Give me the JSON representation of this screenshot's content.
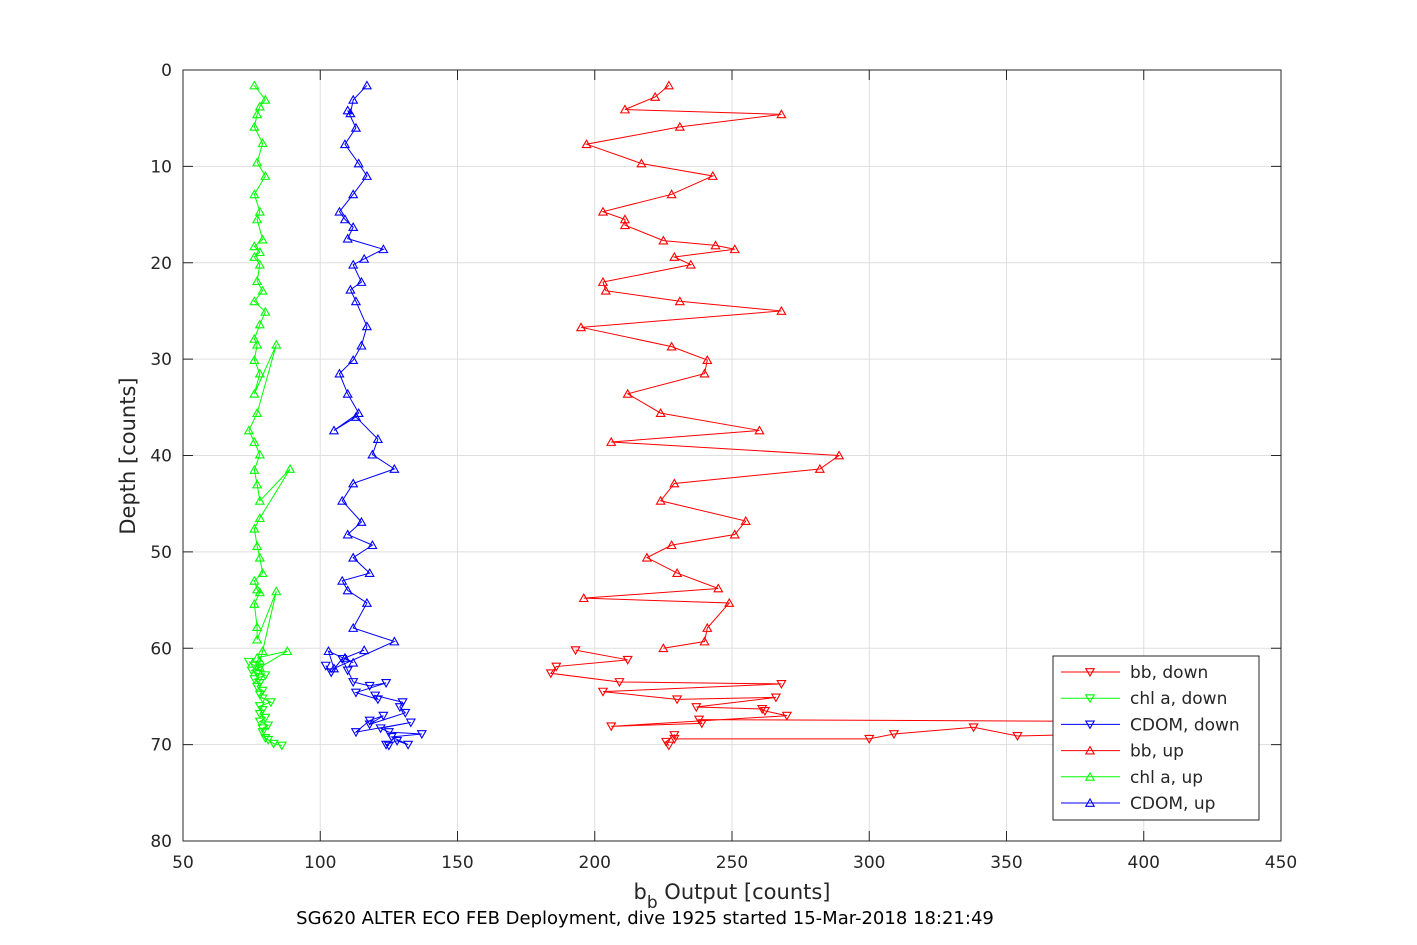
{
  "chart_data": {
    "type": "line",
    "xlabel_main": "b",
    "xlabel_sub": "b",
    "xlabel_rest": " Output [counts]",
    "ylabel": "Depth [counts]",
    "footer": "SG620 ALTER ECO FEB Deployment, dive 1925 started 15-Mar-2018 18:21:49",
    "xlim": [
      50,
      450
    ],
    "ylim": [
      0,
      80
    ],
    "y_reversed": true,
    "grid": true,
    "legend_position": "bottom-right",
    "x_ticks": [
      "50",
      "100",
      "150",
      "200",
      "250",
      "300",
      "350",
      "400",
      "450"
    ],
    "y_ticks": [
      "0",
      "10",
      "20",
      "30",
      "40",
      "50",
      "60",
      "70",
      "80"
    ],
    "series": [
      {
        "name": "bb, down",
        "color": "#ff0000",
        "marker": "triangle-down",
        "x": [
          227,
          226,
          229,
          229,
          300,
          309,
          338,
          354,
          400,
          400,
          238,
          239,
          206,
          270,
          262,
          261,
          237,
          266,
          230,
          203,
          268,
          209,
          184,
          186,
          212,
          193
        ],
        "y": [
          70.1,
          69.7,
          69.0,
          69.4,
          69.4,
          68.9,
          68.2,
          69.1,
          68.8,
          67.6,
          67.4,
          67.8,
          68.1,
          67.0,
          66.5,
          66.3,
          66.1,
          65.1,
          65.3,
          64.5,
          63.7,
          63.5,
          62.6,
          61.9,
          61.2,
          60.2
        ]
      },
      {
        "name": "chl a, down",
        "color": "#00ff00",
        "marker": "triangle-down",
        "x": [
          86,
          83,
          81,
          80,
          79,
          79,
          81,
          78,
          80,
          78,
          79,
          78,
          82,
          79,
          78,
          79,
          77,
          78,
          76,
          78,
          80,
          77,
          75,
          78,
          76,
          74
        ],
        "y": [
          70.1,
          69.9,
          69.5,
          69.3,
          68.7,
          68.3,
          68.0,
          67.6,
          67.2,
          66.8,
          66.4,
          66.0,
          65.6,
          65.2,
          64.8,
          64.4,
          64.0,
          63.6,
          63.2,
          63.0,
          62.8,
          62.6,
          62.3,
          62.0,
          61.8,
          61.4
        ]
      },
      {
        "name": "CDOM, down",
        "color": "#0000ff",
        "marker": "triangle-down",
        "x": [
          125,
          124,
          128,
          132,
          126,
          137,
          125,
          122,
          133,
          113,
          118,
          123,
          118,
          131,
          129,
          130,
          120,
          121,
          113,
          124,
          118,
          112,
          110,
          108,
          104,
          102
        ],
        "y": [
          70.1,
          70.0,
          69.6,
          70.0,
          69.2,
          68.9,
          68.7,
          68.3,
          67.7,
          68.7,
          67.5,
          67.0,
          67.9,
          66.7,
          66.1,
          65.6,
          64.9,
          65.3,
          64.6,
          63.6,
          63.9,
          63.5,
          62.3,
          61.1,
          62.5,
          61.8
        ]
      },
      {
        "name": "bb, up",
        "color": "#ff0000",
        "marker": "triangle-up",
        "x": [
          227,
          222,
          211,
          268,
          231,
          197,
          217,
          243,
          228,
          203,
          211,
          211,
          225,
          244,
          251,
          229,
          235,
          203,
          204,
          231,
          268,
          195,
          228,
          241,
          240,
          212,
          224,
          260,
          206,
          289,
          282,
          229,
          224,
          255,
          251,
          228,
          219,
          230,
          245,
          196,
          249,
          241,
          240,
          225
        ],
        "y": [
          1.6,
          2.8,
          4.1,
          4.6,
          5.9,
          7.7,
          9.7,
          11.0,
          12.9,
          14.7,
          15.5,
          16.1,
          17.7,
          18.2,
          18.6,
          19.4,
          20.2,
          22.0,
          22.9,
          24.0,
          25.0,
          26.7,
          28.7,
          30.1,
          31.5,
          33.6,
          35.6,
          37.4,
          38.6,
          40.0,
          41.4,
          42.9,
          44.7,
          46.8,
          48.2,
          49.3,
          50.6,
          52.2,
          53.8,
          54.8,
          55.3,
          57.9,
          59.3,
          60.0
        ]
      },
      {
        "name": "chl a, up",
        "color": "#00ff00",
        "marker": "triangle-up",
        "x": [
          76,
          80,
          78,
          77,
          76,
          79,
          77,
          80,
          76,
          78,
          77,
          79,
          76,
          78,
          76,
          78,
          77,
          79,
          76,
          80,
          78,
          76,
          77,
          76,
          78,
          76,
          84,
          77,
          74,
          76,
          78,
          76,
          77,
          78,
          89,
          78,
          76,
          77,
          78,
          79,
          76,
          77,
          78,
          76,
          77,
          77,
          84,
          79,
          78,
          78,
          88,
          77
        ],
        "y": [
          1.6,
          3.1,
          3.8,
          4.6,
          5.9,
          7.6,
          9.6,
          11.0,
          12.9,
          14.7,
          15.5,
          17.6,
          18.3,
          18.9,
          19.4,
          20.2,
          21.9,
          22.9,
          24.0,
          25.1,
          26.4,
          27.9,
          28.5,
          30.1,
          31.5,
          33.6,
          28.5,
          35.6,
          37.4,
          38.6,
          39.9,
          41.5,
          43.0,
          44.7,
          41.4,
          46.5,
          47.6,
          49.4,
          50.6,
          52.2,
          53.0,
          53.9,
          54.2,
          55.4,
          57.8,
          59.1,
          54.1,
          60.3,
          61.3,
          62.0,
          60.3,
          61.0
        ]
      },
      {
        "name": "CDOM, up",
        "color": "#0000ff",
        "marker": "triangle-up",
        "x": [
          117,
          112,
          111,
          110,
          113,
          109,
          114,
          117,
          112,
          107,
          109,
          112,
          110,
          123,
          116,
          112,
          115,
          111,
          113,
          117,
          115,
          112,
          107,
          110,
          114,
          105,
          113,
          121,
          119,
          127,
          112,
          108,
          115,
          110,
          119,
          112,
          118,
          108,
          110,
          117,
          112,
          127,
          105,
          103,
          112,
          109,
          116
        ],
        "y": [
          1.6,
          3.1,
          4.5,
          4.2,
          6.0,
          7.7,
          9.7,
          11.0,
          12.9,
          14.7,
          15.5,
          16.3,
          17.5,
          18.6,
          19.6,
          20.2,
          22.0,
          22.8,
          24.0,
          26.6,
          28.6,
          30.1,
          31.5,
          33.6,
          35.6,
          37.4,
          36.0,
          38.3,
          39.9,
          41.4,
          42.9,
          44.7,
          46.9,
          48.2,
          49.3,
          50.6,
          52.2,
          53.0,
          54.0,
          55.3,
          57.9,
          59.3,
          62.1,
          60.3,
          61.5,
          61.0,
          60.2
        ]
      }
    ]
  }
}
